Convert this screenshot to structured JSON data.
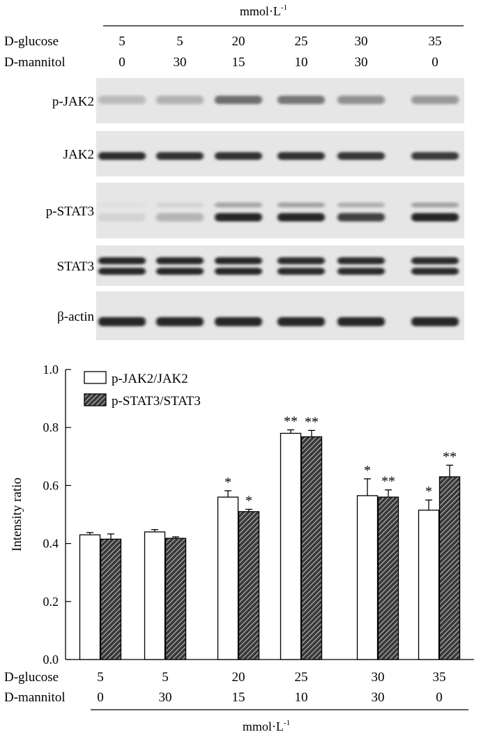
{
  "blot": {
    "unit_main": "mmol·L",
    "unit_sup": "-1",
    "row_labels": {
      "glucose": "D-glucose",
      "mannitol": "D-mannitol"
    },
    "lanes": [
      {
        "glucose": "5",
        "mannitol": "0"
      },
      {
        "glucose": "5",
        "mannitol": "30"
      },
      {
        "glucose": "20",
        "mannitol": "15"
      },
      {
        "glucose": "25",
        "mannitol": "10"
      },
      {
        "glucose": "30",
        "mannitol": "30"
      },
      {
        "glucose": "35",
        "mannitol": "0"
      }
    ],
    "panels": [
      {
        "label": "p-JAK2",
        "intensity": [
          0.3,
          0.35,
          0.8,
          0.75,
          0.55,
          0.5
        ]
      },
      {
        "label": "JAK2",
        "intensity": [
          0.9,
          0.88,
          0.88,
          0.88,
          0.85,
          0.84
        ]
      },
      {
        "label": "p-STAT3",
        "intensity": [
          0.08,
          0.25,
          0.92,
          0.95,
          0.8,
          0.96
        ]
      },
      {
        "label": "STAT3",
        "intensity": [
          0.95,
          0.92,
          0.92,
          0.9,
          0.9,
          0.9
        ]
      },
      {
        "label": "β-actin",
        "intensity": [
          0.95,
          0.95,
          0.95,
          0.95,
          0.95,
          0.95
        ]
      }
    ],
    "colors": {
      "membrane": "#e6e6e6",
      "band": "#1a1a1a"
    }
  },
  "chart_data": {
    "type": "bar",
    "ylabel": "Intensity ratio",
    "ylim": [
      0,
      1.0
    ],
    "yticks": [
      "0.0",
      "0.2",
      "0.4",
      "0.6",
      "0.8",
      "1.0"
    ],
    "ytick_values": [
      0,
      0.2,
      0.4,
      0.6,
      0.8,
      1.0
    ],
    "legend_position": "top-left",
    "grid": false,
    "categories": [
      {
        "glucose": "5",
        "mannitol": "0"
      },
      {
        "glucose": "5",
        "mannitol": "30"
      },
      {
        "glucose": "20",
        "mannitol": "15"
      },
      {
        "glucose": "25",
        "mannitol": "10"
      },
      {
        "glucose": "30",
        "mannitol": "30"
      },
      {
        "glucose": "35",
        "mannitol": "0"
      }
    ],
    "category_row_labels": {
      "glucose": "D-glucose",
      "mannitol": "D-mannitol"
    },
    "unit_main": "mmol·L",
    "unit_sup": "-1",
    "series": [
      {
        "name": "p-JAK2/JAK2",
        "fill": "open",
        "values": [
          0.43,
          0.44,
          0.56,
          0.78,
          0.565,
          0.515
        ],
        "errors": [
          0.008,
          0.008,
          0.022,
          0.012,
          0.058,
          0.035
        ],
        "annotations": [
          "",
          "",
          "*",
          "**",
          "*",
          "*"
        ]
      },
      {
        "name": "p-STAT3/STAT3",
        "fill": "hatched",
        "values": [
          0.415,
          0.418,
          0.51,
          0.768,
          0.56,
          0.63
        ],
        "errors": [
          0.018,
          0.005,
          0.008,
          0.022,
          0.025,
          0.04
        ],
        "annotations": [
          "",
          "",
          "*",
          "**",
          "**",
          "**"
        ]
      }
    ],
    "colors": {
      "axis": "#000000",
      "bar_open": "#ffffff",
      "bar_hatched": "#3a3a3a",
      "hatch_line": "#ffffff"
    }
  }
}
